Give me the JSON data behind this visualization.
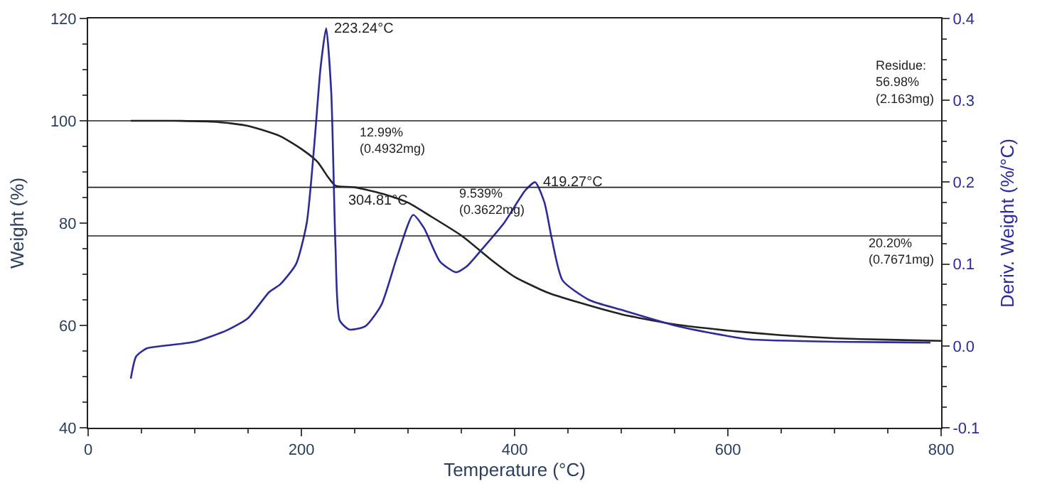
{
  "chart_data": {
    "type": "line",
    "xlabel": "Temperature (°C)",
    "ylabel": "Weight (%)",
    "y2label": "Deriv. Weight (%/°C)",
    "xlim": [
      0,
      800
    ],
    "xticks": [
      0,
      200,
      400,
      600,
      800
    ],
    "ylim": [
      40,
      120
    ],
    "yticks": [
      40,
      60,
      80,
      100,
      120
    ],
    "y2lim": [
      -0.1,
      0.4
    ],
    "y2ticks": [
      -0.1,
      {
        "value": 0,
        "label": "0.0"
      },
      0.1,
      0.2,
      0.3,
      0.4
    ],
    "marker": "none",
    "line_style": "solid",
    "series": [
      {
        "color": "#222222",
        "x": [
          40,
          80,
          120,
          150,
          180,
          200,
          215,
          225,
          232,
          250,
          280,
          300,
          320,
          350.5,
          380,
          400,
          430,
          460,
          500,
          550,
          600,
          650,
          700,
          750,
          800
        ],
        "values": [
          100,
          100,
          99.8,
          99,
          97,
          94.5,
          92,
          89,
          87.3,
          87.0,
          85.5,
          84,
          81.5,
          77.5,
          72.5,
          69.5,
          66.5,
          64.5,
          62.2,
          60.2,
          59,
          58.1,
          57.5,
          57.2,
          56.98
        ]
      },
      {
        "color": "#2b2b9a",
        "axis": "y2",
        "x": [
          40,
          45,
          55,
          70,
          100,
          130,
          150,
          170,
          180,
          195,
          205,
          212,
          218,
          223.24,
          228,
          232,
          236,
          245,
          260,
          275,
          290,
          304.81,
          315,
          330,
          345,
          355,
          370,
          390,
          410,
          419.27,
          428,
          435,
          445,
          470,
          500,
          550,
          600,
          620,
          700,
          790
        ],
        "values": [
          -0.04,
          -0.013,
          -0.003,
          0.0,
          0.005,
          0.019,
          0.034,
          0.066,
          0.075,
          0.1,
          0.15,
          0.244,
          0.34,
          0.388,
          0.31,
          0.12,
          0.031,
          0.02,
          0.024,
          0.05,
          0.11,
          0.16,
          0.144,
          0.103,
          0.09,
          0.097,
          0.119,
          0.15,
          0.19,
          0.2,
          0.175,
          0.13,
          0.08,
          0.056,
          0.044,
          0.025,
          0.012,
          0.008,
          0.005,
          0.004
        ]
      }
    ],
    "ref_lines": [
      {
        "axis": "y",
        "value": 100,
        "color": "#222222"
      },
      {
        "axis": "y",
        "value": 87.0,
        "color": "#222222"
      },
      {
        "axis": "y",
        "value": 77.5,
        "color": "#222222"
      }
    ],
    "annotations": [
      {
        "text": "223.24°C",
        "x": 223.24,
        "y": 118
      },
      {
        "text": "304.81°C",
        "x": 304.81,
        "y": 82
      },
      {
        "text": "419.27°C",
        "x": 419.27,
        "y": 88
      },
      "12.99%\n(0.4932mg)",
      "9.539%\n(0.3622mg)",
      "20.20%\n(0.7671mg)",
      "Residue:\n56.98%\n(2.163mg)"
    ]
  }
}
